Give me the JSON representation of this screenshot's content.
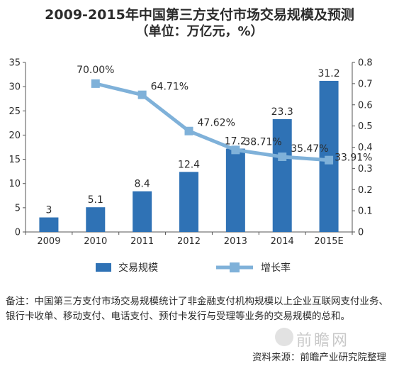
{
  "title_line1": "2009-2015年中国第三方支付市场交易规模及预测",
  "title_line2": "（单位：万亿元，%）",
  "note": "备注：中国第三方支付市场交易规模统计了非金融支付机构规模以上企业互联网支付业务、银行卡收单、移动支付、电话支付、预付卡发行与受理等业务的交易规模的总和。",
  "source": "资料来源：前瞻产业研究院整理",
  "watermark": "前瞻网",
  "colors": {
    "bar": "#2f72b5",
    "line": "#7fb1d9",
    "axis": "#555555",
    "text": "#2b2b2b"
  },
  "chart_data": {
    "type": "bar",
    "categories": [
      "2009",
      "2010",
      "2011",
      "2012",
      "2013",
      "2014",
      "2015E"
    ],
    "series": [
      {
        "name": "交易规模",
        "type": "bar",
        "axis": "left",
        "values": [
          3,
          5.1,
          8.4,
          12.4,
          17.2,
          23.3,
          31.2
        ],
        "labels": [
          "3",
          "5.1",
          "8.4",
          "12.4",
          "17.2",
          "23.3",
          "31.2"
        ]
      },
      {
        "name": "增长率",
        "type": "line",
        "axis": "right",
        "values": [
          null,
          0.7,
          0.6471,
          0.4762,
          0.3871,
          0.3547,
          0.3391
        ],
        "labels": [
          "",
          "70.00%",
          "64.71%",
          "47.62%",
          "38.71%",
          "35.47%",
          "33.91%"
        ]
      }
    ],
    "y_left": {
      "min": 0,
      "max": 35,
      "ticks": [
        "0",
        "5",
        "10",
        "15",
        "20",
        "25",
        "30",
        "35"
      ]
    },
    "y_right": {
      "min": 0,
      "max": 0.8,
      "ticks": [
        "0",
        "0.1",
        "0.2",
        "0.3",
        "0.4",
        "0.5",
        "0.6",
        "0.7",
        "0.8"
      ]
    },
    "grid": false,
    "legend_position": "bottom"
  }
}
